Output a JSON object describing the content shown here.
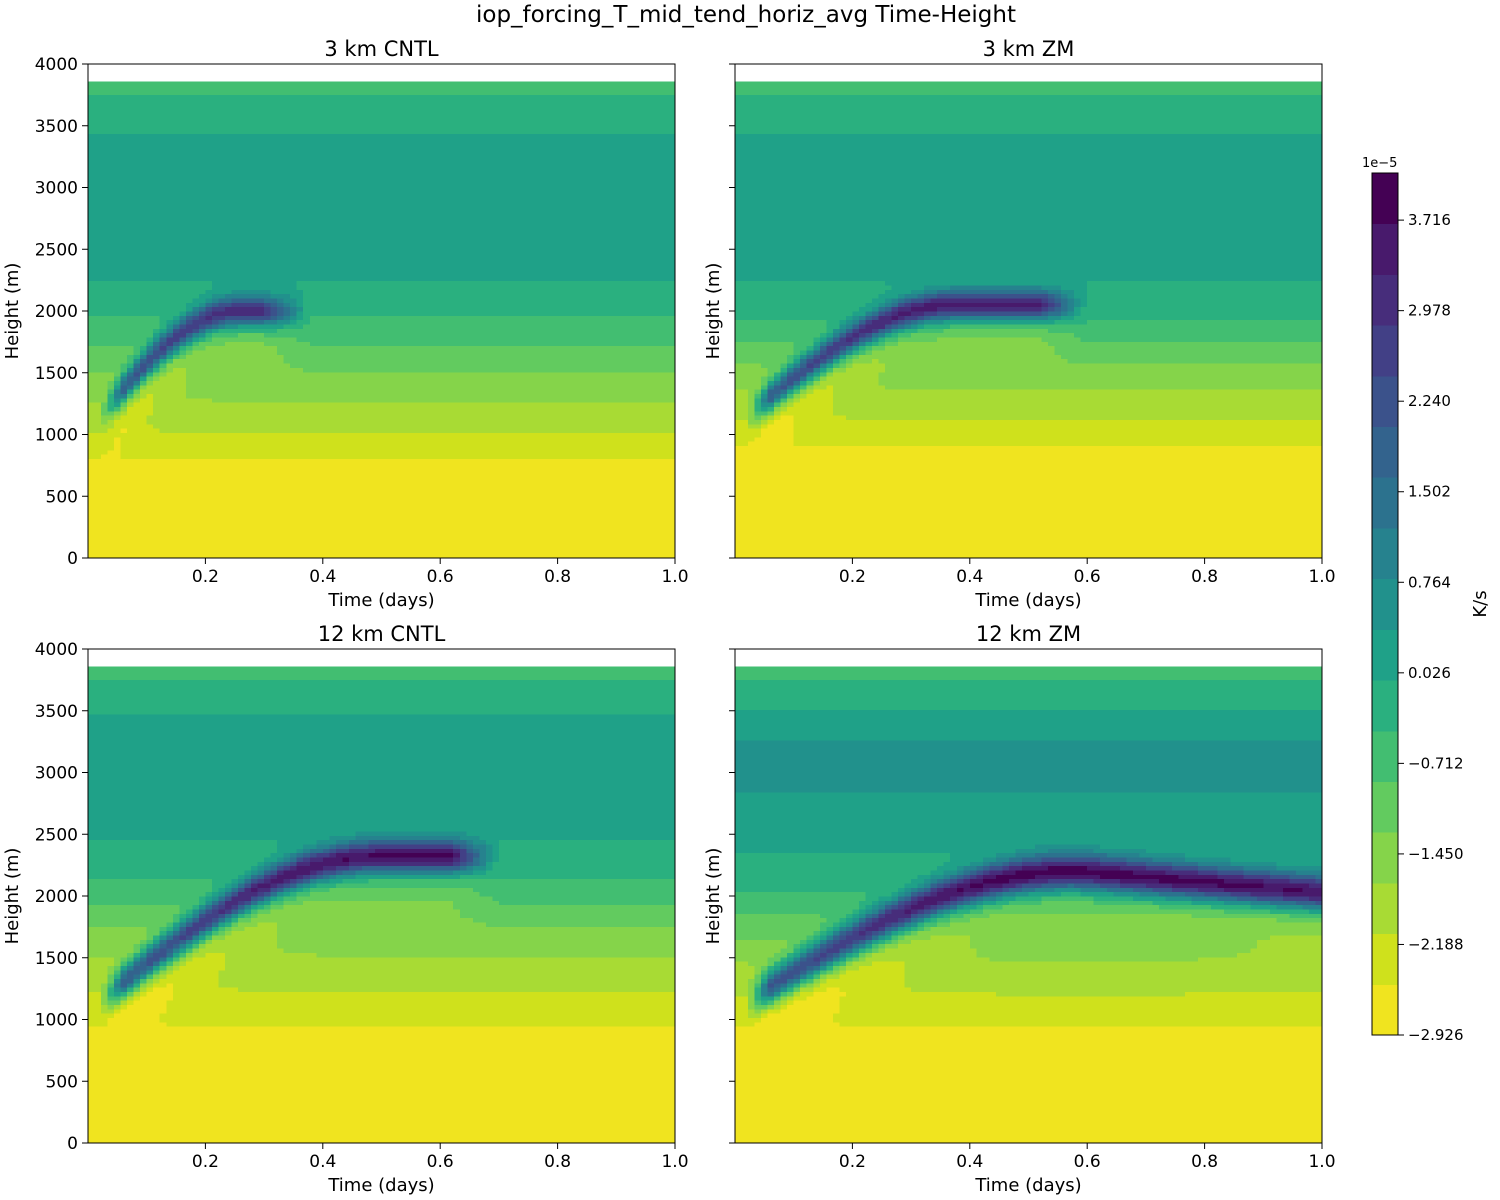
{
  "figure": {
    "title": "iop_forcing_T_mid_tend_horiz_avg Time-Height"
  },
  "chart_data": [
    {
      "type": "heatmap",
      "title": "3 km CNTL",
      "xlabel": "Time (days)",
      "ylabel": "Height (m)",
      "xlim": [
        0.0,
        1.0
      ],
      "ylim": [
        0,
        4000
      ],
      "xticks": [
        0.2,
        0.4,
        0.6,
        0.8,
        1.0
      ],
      "yticks": [
        0,
        500,
        1000,
        1500,
        2000,
        2500,
        3000,
        3500,
        4000
      ],
      "data_top_height": 3860,
      "max_band": {
        "t0": 0.02,
        "h0": 1150,
        "tpeak": 0.26,
        "hpeak": 2000,
        "t1": 0.3,
        "amp": 3.5,
        "width": 120
      },
      "layers": [
        {
          "h": 0,
          "v": -2.926
        },
        {
          "h": 600,
          "v": -2.926
        },
        {
          "h": 850,
          "v": -2.4
        },
        {
          "h": 1150,
          "v": -1.9
        },
        {
          "h": 1450,
          "v": -1.4
        },
        {
          "h": 1800,
          "v": -0.7
        },
        {
          "h": 2400,
          "v": 0.2
        },
        {
          "h": 3100,
          "v": 0.3
        },
        {
          "h": 3600,
          "v": -0.2
        },
        {
          "h": 3860,
          "v": -0.6
        }
      ]
    },
    {
      "type": "heatmap",
      "title": "3 km ZM",
      "xlabel": "Time (days)",
      "ylabel": "Height (m)",
      "xlim": [
        0.0,
        1.0
      ],
      "ylim": [
        0,
        4000
      ],
      "xticks": [
        0.2,
        0.4,
        0.6,
        0.8,
        1.0
      ],
      "yticks": [
        0,
        500,
        1000,
        1500,
        2000,
        2500,
        3000,
        3500,
        4000
      ],
      "data_top_height": 3860,
      "max_band": {
        "t0": 0.02,
        "h0": 1150,
        "tpeak": 0.38,
        "hpeak": 2050,
        "t1": 0.52,
        "amp": 3.8,
        "width": 120
      },
      "layers": [
        {
          "h": 0,
          "v": -2.926
        },
        {
          "h": 700,
          "v": -2.926
        },
        {
          "h": 950,
          "v": -2.4
        },
        {
          "h": 1250,
          "v": -1.9
        },
        {
          "h": 1600,
          "v": -1.2
        },
        {
          "h": 1900,
          "v": -0.5
        },
        {
          "h": 2400,
          "v": 0.2
        },
        {
          "h": 3100,
          "v": 0.3
        },
        {
          "h": 3600,
          "v": -0.2
        },
        {
          "h": 3860,
          "v": -0.6
        }
      ]
    },
    {
      "type": "heatmap",
      "title": "12 km CNTL",
      "xlabel": "Time (days)",
      "ylabel": "Height (m)",
      "xlim": [
        0.0,
        1.0
      ],
      "ylim": [
        0,
        4000
      ],
      "xticks": [
        0.2,
        0.4,
        0.6,
        0.8,
        1.0
      ],
      "yticks": [
        0,
        500,
        1000,
        1500,
        2000,
        2500,
        3000,
        3500,
        4000
      ],
      "data_top_height": 3860,
      "max_band": {
        "t0": 0.02,
        "h0": 1150,
        "tpeak": 0.5,
        "hpeak": 2320,
        "t1": 0.62,
        "amp": 4.0,
        "width": 130
      },
      "layers": [
        {
          "h": 0,
          "v": -2.926
        },
        {
          "h": 700,
          "v": -2.926
        },
        {
          "h": 1000,
          "v": -2.4
        },
        {
          "h": 1400,
          "v": -1.9
        },
        {
          "h": 1800,
          "v": -1.2
        },
        {
          "h": 2100,
          "v": -0.5
        },
        {
          "h": 2700,
          "v": 0.3
        },
        {
          "h": 3300,
          "v": 0.2
        },
        {
          "h": 3600,
          "v": -0.2
        },
        {
          "h": 3860,
          "v": -0.6
        }
      ]
    },
    {
      "type": "heatmap",
      "title": "12 km ZM",
      "xlabel": "Time (days)",
      "ylabel": "Height (m)",
      "xlim": [
        0.0,
        1.0
      ],
      "ylim": [
        0,
        4000
      ],
      "xticks": [
        0.2,
        0.4,
        0.6,
        0.8,
        1.0
      ],
      "yticks": [
        0,
        500,
        1000,
        1500,
        2000,
        2500,
        3000,
        3500,
        4000
      ],
      "data_top_height": 3860,
      "max_band": {
        "t0": 0.02,
        "h0": 1150,
        "tpeak": 0.58,
        "hpeak": 2200,
        "t1": 1.0,
        "h1": 2030,
        "amp": 4.2,
        "width": 140
      },
      "layers": [
        {
          "h": 0,
          "v": -2.926
        },
        {
          "h": 700,
          "v": -2.926
        },
        {
          "h": 1000,
          "v": -2.4
        },
        {
          "h": 1350,
          "v": -1.9
        },
        {
          "h": 1700,
          "v": -1.2
        },
        {
          "h": 2000,
          "v": -0.5
        },
        {
          "h": 2600,
          "v": 0.3
        },
        {
          "h": 3200,
          "v": 0.5
        },
        {
          "h": 3600,
          "v": -0.2
        },
        {
          "h": 3860,
          "v": -0.6
        }
      ]
    }
  ],
  "colorbar": {
    "label": "K/s",
    "exponent": "1e−5",
    "vmin": -2.926,
    "vmax": 4.1,
    "tick_values": [
      -2.926,
      -2.188,
      -1.45,
      -0.712,
      0.026,
      0.764,
      1.502,
      2.24,
      2.978,
      3.716
    ],
    "tick_labels": [
      "−2.926",
      "−2.188",
      "−1.450",
      "−0.712",
      "0.026",
      "0.764",
      "1.502",
      "2.240",
      "2.978",
      "3.716"
    ],
    "level_count": 19,
    "colors": [
      "#f0e41f",
      "#cfe11c",
      "#a8db34",
      "#85d44a",
      "#62cb5f",
      "#42be71",
      "#2ab07f",
      "#1fa188",
      "#21918c",
      "#26828e",
      "#2c728e",
      "#33638d",
      "#3b528b",
      "#424086",
      "#472d7b",
      "#481a6c",
      "#440154"
    ]
  }
}
